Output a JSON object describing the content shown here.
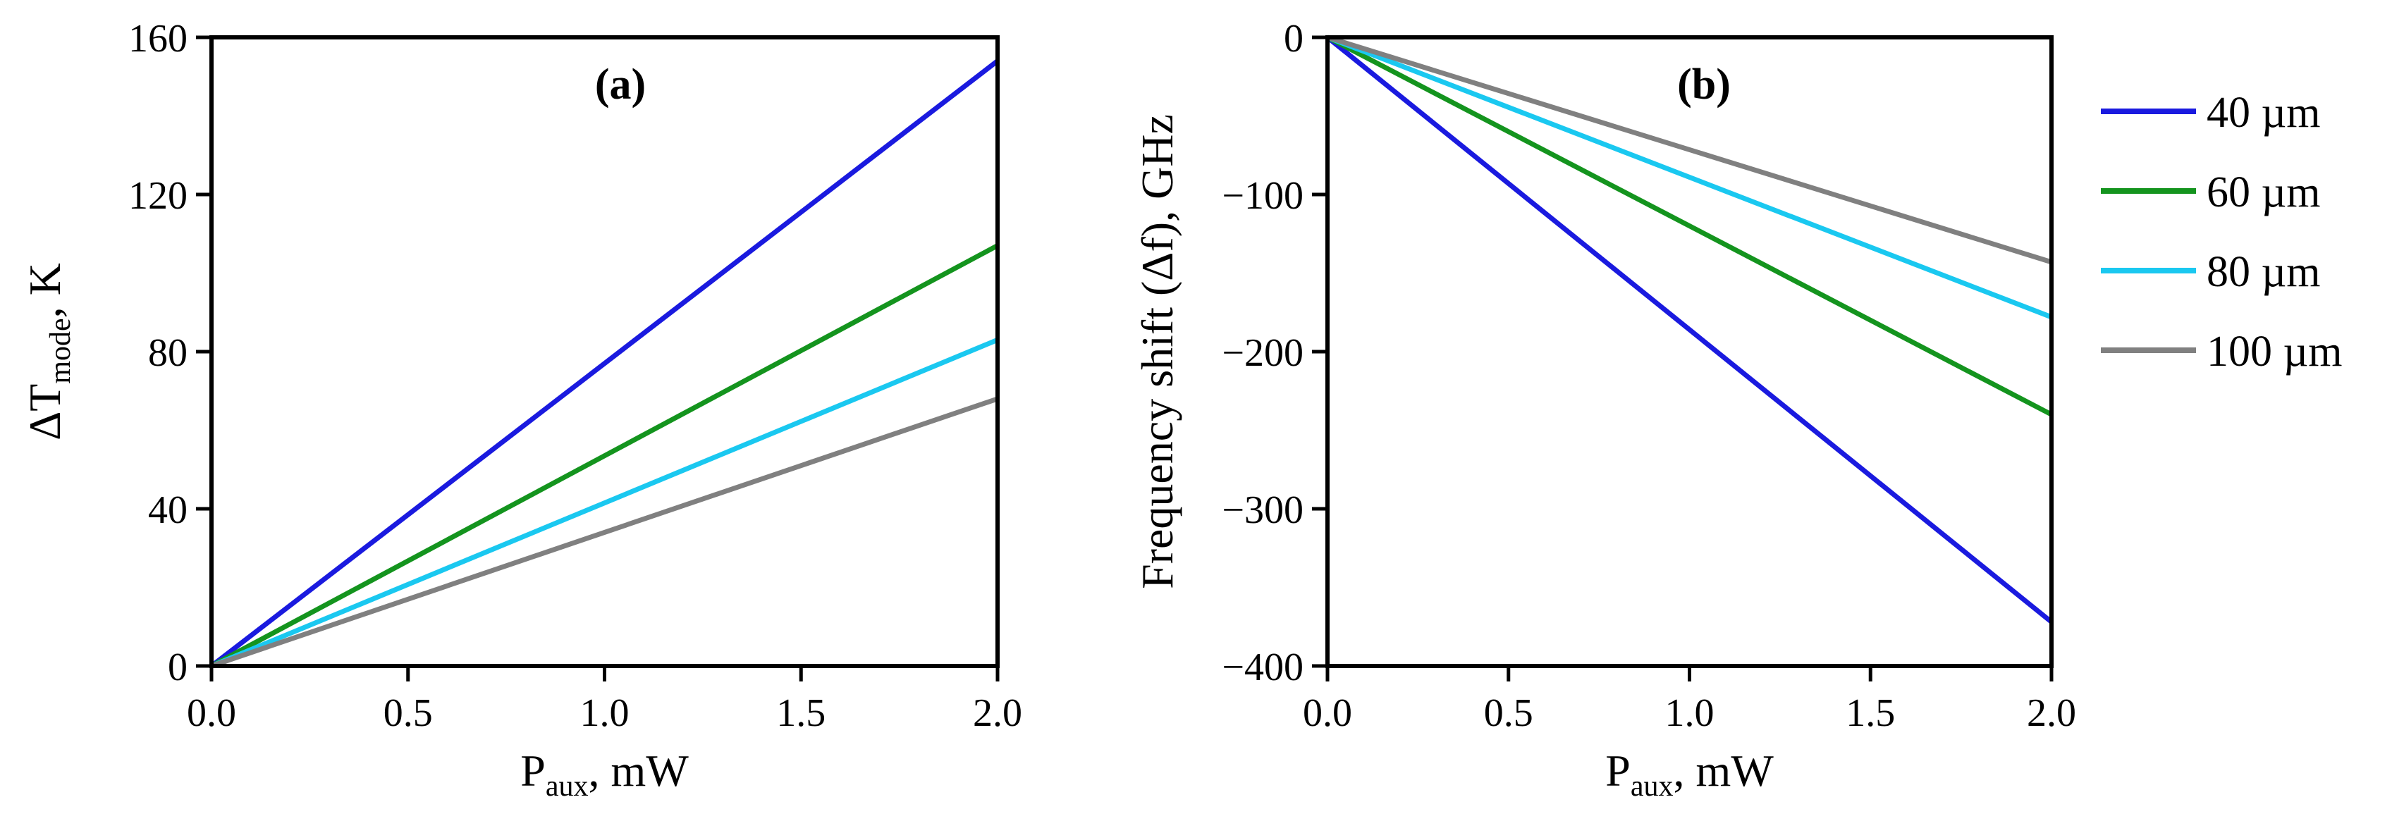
{
  "chart_data": [
    {
      "type": "line",
      "panel_label": "(a)",
      "xlabel": {
        "main": "P",
        "sub": "aux",
        "rest": ", mW"
      },
      "ylabel": {
        "pre": "ΔT",
        "sub": "mode",
        "rest": ", K"
      },
      "xlim": [
        0,
        2
      ],
      "ylim": [
        0,
        160
      ],
      "xticks": [
        0,
        0.5,
        1,
        1.5,
        2
      ],
      "xtick_labels": [
        "0.0",
        "0.5",
        "1.0",
        "1.5",
        "2.0"
      ],
      "yticks": [
        0,
        40,
        80,
        120,
        160
      ],
      "ytick_labels": [
        "0",
        "40",
        "80",
        "120",
        "160"
      ],
      "series": [
        {
          "name": "40 µm",
          "color": "#1a1adf",
          "x": [
            0,
            2
          ],
          "values": [
            0,
            154
          ]
        },
        {
          "name": "60 µm",
          "color": "#14941e",
          "x": [
            0,
            2
          ],
          "values": [
            0,
            107
          ]
        },
        {
          "name": "80 µm",
          "color": "#1ac8f0",
          "x": [
            0,
            2
          ],
          "values": [
            0,
            83
          ]
        },
        {
          "name": "100 µm",
          "color": "#808080",
          "x": [
            0,
            2
          ],
          "values": [
            0,
            68
          ]
        }
      ]
    },
    {
      "type": "line",
      "panel_label": "(b)",
      "xlabel": {
        "main": "P",
        "sub": "aux",
        "rest": ", mW"
      },
      "ylabel": {
        "text": "Frequency shift (Δf), GHz"
      },
      "xlim": [
        0,
        2
      ],
      "ylim": [
        -400,
        0
      ],
      "xticks": [
        0,
        0.5,
        1,
        1.5,
        2
      ],
      "xtick_labels": [
        "0.0",
        "0.5",
        "1.0",
        "1.5",
        "2.0"
      ],
      "yticks": [
        0,
        -100,
        -200,
        -300,
        -400
      ],
      "ytick_labels": [
        "0",
        "−100",
        "−200",
        "−300",
        "−400"
      ],
      "series": [
        {
          "name": "40 µm",
          "color": "#1a1adf",
          "x": [
            0,
            2
          ],
          "values": [
            0,
            -372
          ]
        },
        {
          "name": "60 µm",
          "color": "#14941e",
          "x": [
            0,
            2
          ],
          "values": [
            0,
            -240
          ]
        },
        {
          "name": "80 µm",
          "color": "#1ac8f0",
          "x": [
            0,
            2
          ],
          "values": [
            0,
            -178
          ]
        },
        {
          "name": "100 µm",
          "color": "#808080",
          "x": [
            0,
            2
          ],
          "values": [
            0,
            -143
          ]
        }
      ]
    }
  ],
  "legend": {
    "placement": "right",
    "entries": [
      {
        "label": "40 µm",
        "color": "#1a1adf"
      },
      {
        "label": "60 µm",
        "color": "#14941e"
      },
      {
        "label": "80 µm",
        "color": "#1ac8f0"
      },
      {
        "label": "100 µm",
        "color": "#808080"
      }
    ]
  }
}
